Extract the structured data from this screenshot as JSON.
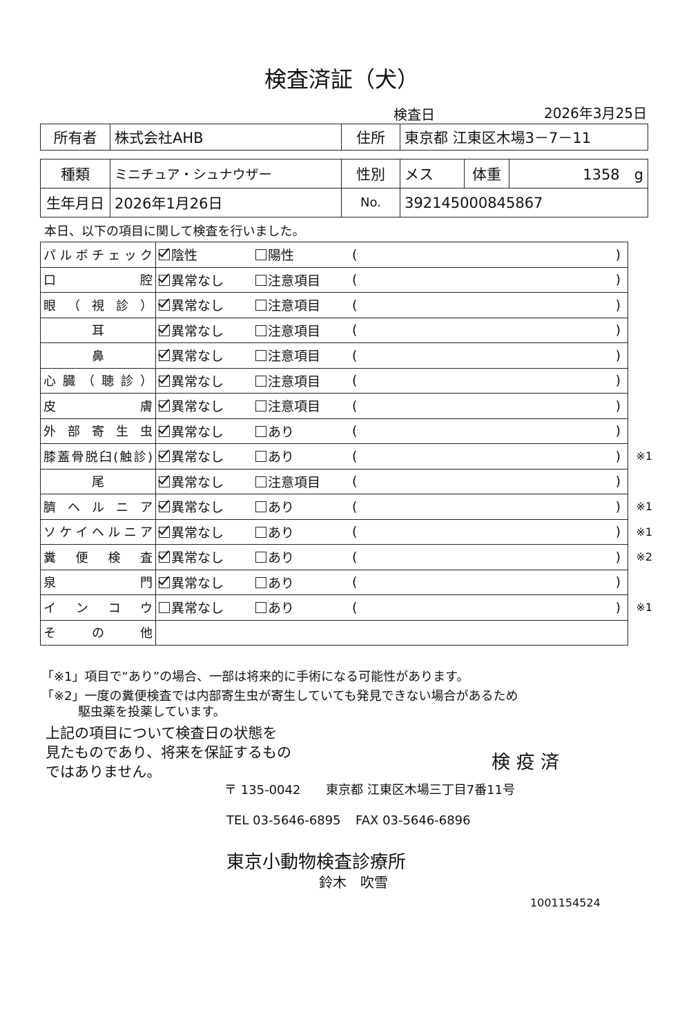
{
  "title": "検査済証（犬）",
  "exam_date_label": "検査日",
  "exam_date": "2026年3月25日",
  "owner_label": "所有者",
  "owner": "株式会社AHB",
  "address_label": "住所",
  "address": "東京都 江東区木場3－7－11",
  "breed_label": "種類",
  "breed": "ミニチュア・シュナウザー",
  "sex_label": "性別",
  "sex": "メス",
  "weight_label": "体重",
  "weight": "1358　g",
  "birth_label": "生年月日",
  "birth": "2026年1月26日",
  "no_label": "No.",
  "no": "392145000845867",
  "intro": "本日、以下の項目に関して検査を行いました。",
  "paren_open": "(",
  "paren_close": ")",
  "items": [
    {
      "label": "パルボチェック",
      "opt1": "陰性",
      "opt2": "陽性",
      "checked": true,
      "note": ""
    },
    {
      "label": "口腔",
      "opt1": "異常なし",
      "opt2": "注意項目",
      "checked": true,
      "note": ""
    },
    {
      "label": "眼（視診）",
      "opt1": "異常なし",
      "opt2": "注意項目",
      "checked": true,
      "note": ""
    },
    {
      "label": "耳",
      "opt1": "異常なし",
      "opt2": "注意項目",
      "checked": true,
      "note": "",
      "center": true
    },
    {
      "label": "鼻",
      "opt1": "異常なし",
      "opt2": "注意項目",
      "checked": true,
      "note": "",
      "center": true
    },
    {
      "label": "心臓（聴診）",
      "opt1": "異常なし",
      "opt2": "注意項目",
      "checked": true,
      "note": ""
    },
    {
      "label": "皮膚",
      "opt1": "異常なし",
      "opt2": "注意項目",
      "checked": true,
      "note": ""
    },
    {
      "label": "外部寄生虫",
      "opt1": "異常なし",
      "opt2": "あり",
      "checked": true,
      "note": ""
    },
    {
      "label": "膝蓋骨脱臼(触診)",
      "opt1": "異常なし",
      "opt2": "あり",
      "checked": true,
      "note": "※1"
    },
    {
      "label": "尾",
      "opt1": "異常なし",
      "opt2": "注意項目",
      "checked": true,
      "note": "",
      "center": true
    },
    {
      "label": "臍ヘルニア",
      "opt1": "異常なし",
      "opt2": "あり",
      "checked": true,
      "note": "※1"
    },
    {
      "label": "ソケイヘルニア",
      "opt1": "異常なし",
      "opt2": "あり",
      "checked": true,
      "note": "※1"
    },
    {
      "label": "糞便検査",
      "opt1": "異常なし",
      "opt2": "あり",
      "checked": true,
      "note": "※2"
    },
    {
      "label": "泉門",
      "opt1": "異常なし",
      "opt2": "あり",
      "checked": true,
      "note": ""
    },
    {
      "label": "インコウ",
      "opt1": "異常なし",
      "opt2": "あり",
      "checked": false,
      "note": "※1"
    }
  ],
  "other_label": "その他",
  "note1": "「※1」項目で“あり”の場合、一部は将来的に手術になる可能性があります。",
  "note2a": "「※2」一度の糞便検査では内部寄生虫が寄生していても発見できない場合があるため",
  "note2b": "駆虫薬を投薬しています。",
  "disclaimer": [
    "上記の項目について検査日の状態を",
    "見たものであり、将来を保証するもの",
    "ではありません。"
  ],
  "stamp": "検 疫 済",
  "postal": "〒 135-0042",
  "clinic_address": "東京都 江東区木場三丁目7番11号",
  "tel": "TEL 03-5646-6895",
  "fax": "FAX 03-5646-6896",
  "clinic": "東京小動物検査診療所",
  "doctor": "鈴木　吹雪",
  "doc_id": "1001154524"
}
